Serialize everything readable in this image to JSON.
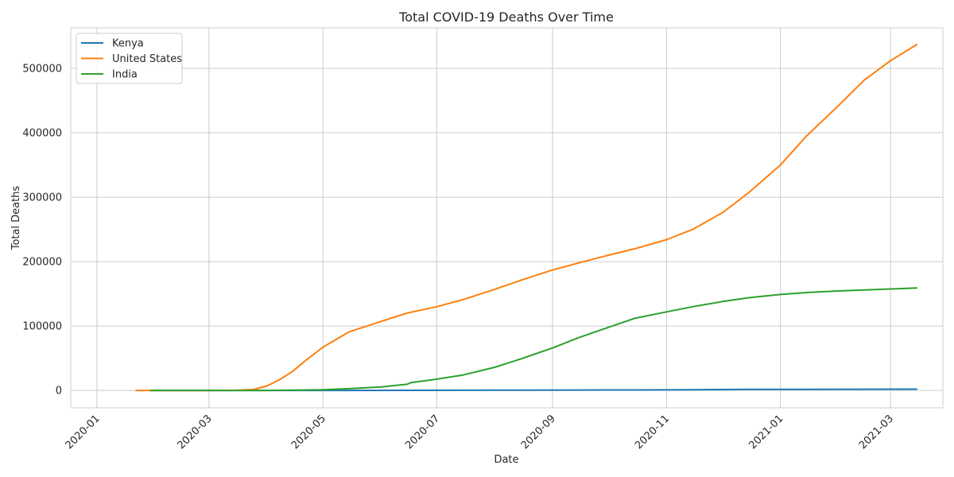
{
  "chart_data": {
    "type": "line",
    "title": "Total COVID-19 Deaths Over Time",
    "xlabel": "Date",
    "ylabel": "Total Deaths",
    "x_axis_type": "date",
    "xlim": [
      "2019-12-18",
      "2021-03-29"
    ],
    "ylim": [
      -27000,
      563000
    ],
    "x_ticks": [
      "2020-01-01",
      "2020-03-01",
      "2020-05-01",
      "2020-07-01",
      "2020-09-01",
      "2020-11-01",
      "2021-01-01",
      "2021-03-01"
    ],
    "x_tick_labels": [
      "2020-01",
      "2020-03",
      "2020-05",
      "2020-07",
      "2020-09",
      "2020-11",
      "2021-01",
      "2021-03"
    ],
    "y_ticks": [
      0,
      100000,
      200000,
      300000,
      400000,
      500000
    ],
    "y_tick_labels": [
      "0",
      "100000",
      "200000",
      "300000",
      "400000",
      "500000"
    ],
    "grid": true,
    "legend_position": "top-left",
    "series": [
      {
        "name": "Kenya",
        "color": "#1f77b4",
        "x": [
          "2020-01-29",
          "2020-03-14",
          "2020-04-15",
          "2020-05-15",
          "2020-06-15",
          "2020-07-15",
          "2020-08-15",
          "2020-09-15",
          "2020-10-15",
          "2020-11-15",
          "2020-12-15",
          "2021-01-15",
          "2021-02-15",
          "2021-03-15"
        ],
        "y": [
          0,
          0,
          20,
          60,
          140,
          300,
          500,
          650,
          800,
          1200,
          1600,
          1750,
          1850,
          2050
        ]
      },
      {
        "name": "United States",
        "color": "#ff7f0e",
        "x": [
          "2020-01-22",
          "2020-02-29",
          "2020-03-15",
          "2020-03-25",
          "2020-04-01",
          "2020-04-08",
          "2020-04-15",
          "2020-04-22",
          "2020-05-01",
          "2020-05-08",
          "2020-05-15",
          "2020-06-01",
          "2020-06-15",
          "2020-07-01",
          "2020-07-15",
          "2020-08-01",
          "2020-08-15",
          "2020-09-01",
          "2020-09-15",
          "2020-10-01",
          "2020-10-15",
          "2020-11-01",
          "2020-11-15",
          "2020-12-01",
          "2020-12-15",
          "2021-01-01",
          "2021-01-15",
          "2021-02-01",
          "2021-02-15",
          "2021-03-01",
          "2021-03-15"
        ],
        "y": [
          0,
          1,
          100,
          1500,
          7000,
          17000,
          30000,
          47000,
          67000,
          79000,
          91000,
          107000,
          120000,
          130000,
          141000,
          157000,
          171000,
          187000,
          198000,
          210000,
          220000,
          234000,
          250000,
          276000,
          307000,
          350000,
          395000,
          442000,
          482000,
          512000,
          537000
        ]
      },
      {
        "name": "India",
        "color": "#2ca02c",
        "x": [
          "2020-01-30",
          "2020-03-12",
          "2020-04-01",
          "2020-04-15",
          "2020-05-01",
          "2020-05-15",
          "2020-06-01",
          "2020-06-15",
          "2020-06-17",
          "2020-07-01",
          "2020-07-15",
          "2020-08-01",
          "2020-08-15",
          "2020-09-01",
          "2020-09-15",
          "2020-10-01",
          "2020-10-15",
          "2020-11-01",
          "2020-11-15",
          "2020-12-01",
          "2020-12-15",
          "2021-01-01",
          "2021-01-15",
          "2021-02-01",
          "2021-02-15",
          "2021-03-01",
          "2021-03-15"
        ],
        "y": [
          0,
          1,
          50,
          400,
          1200,
          2800,
          5500,
          9500,
          12000,
          17500,
          24000,
          36000,
          49000,
          66000,
          82000,
          98000,
          112000,
          122000,
          130000,
          138000,
          144000,
          149000,
          152000,
          154500,
          156000,
          157500,
          159000
        ]
      }
    ]
  }
}
